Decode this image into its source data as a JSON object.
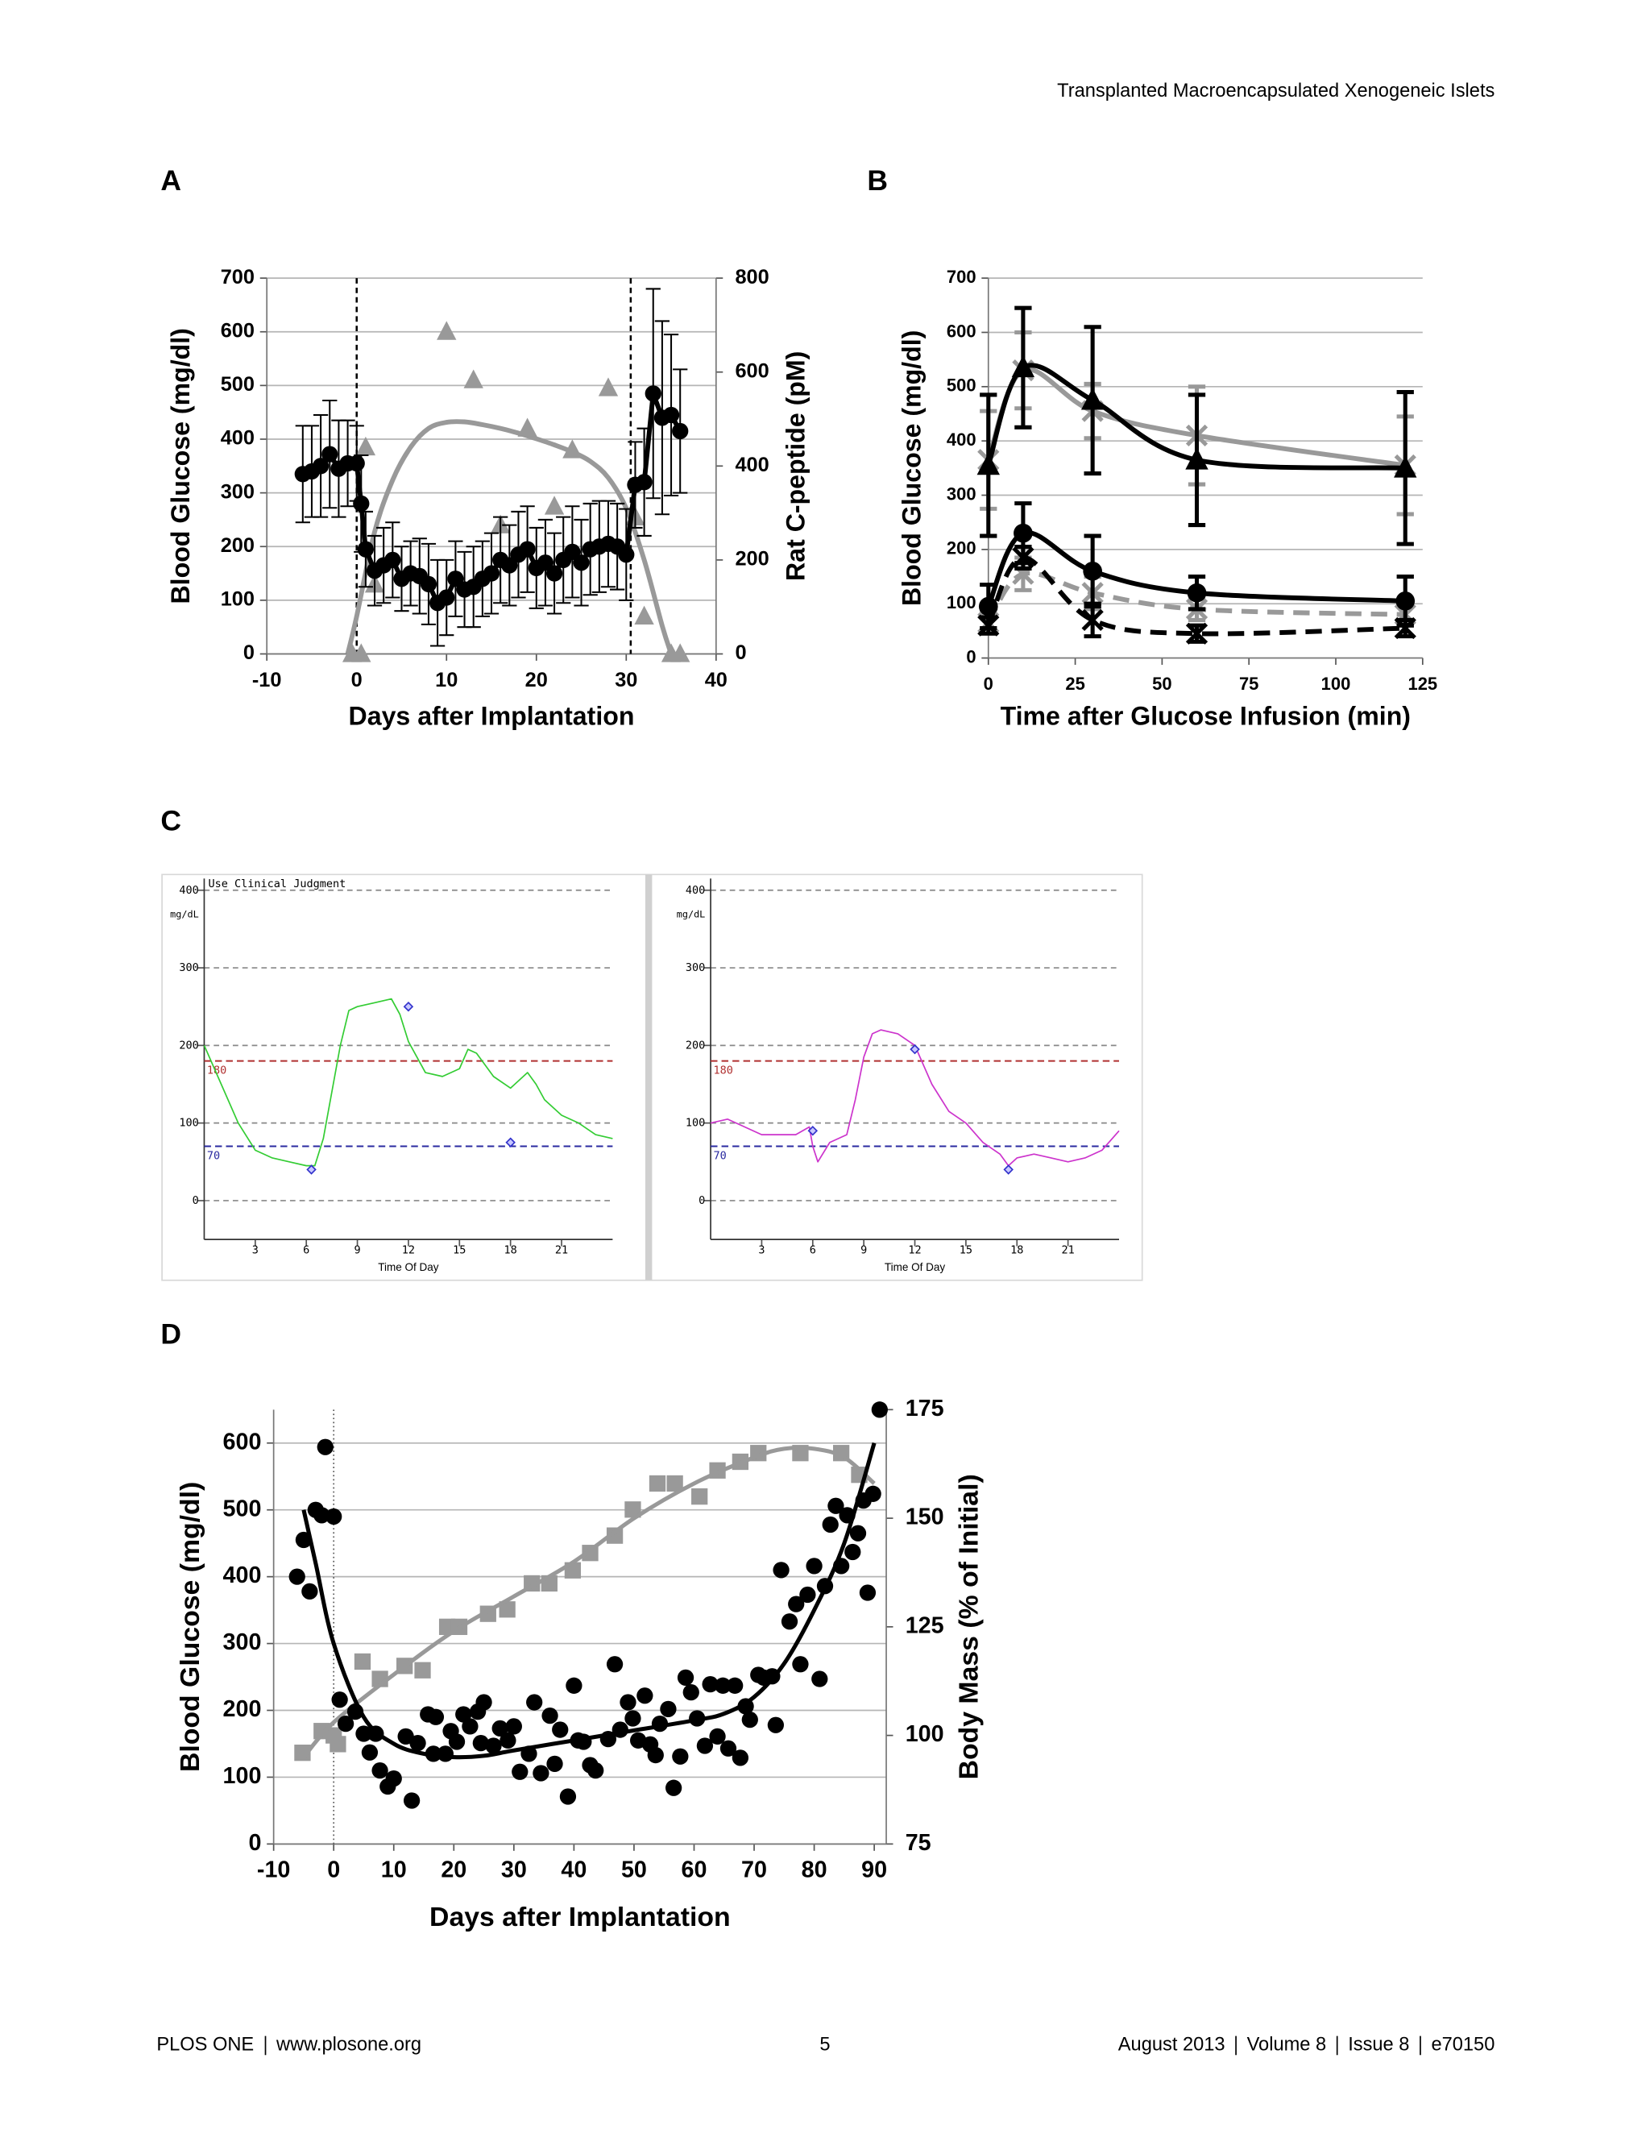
{
  "header": {
    "running_title": "Transplanted Macroencapsulated Xenogeneic Islets"
  },
  "panel_labels": [
    "A",
    "B",
    "C",
    "D"
  ],
  "footer": {
    "journal": "PLOS ONE",
    "url": "www.plosone.org",
    "page": "5",
    "date": "August 2013",
    "volume": "Volume 8",
    "issue": "Issue 8",
    "article": "e70150"
  },
  "chart_data": [
    {
      "type": "line",
      "xlabel": "Days after Implantation",
      "ylabel": "Blood Glucose (mg/dl)",
      "y2label": "Rat C-peptide (pM)",
      "xlim": [
        -10,
        40
      ],
      "xticks": [
        -10,
        0,
        10,
        20,
        30,
        40
      ],
      "ylim": [
        0,
        700
      ],
      "yticks": [
        0,
        100,
        200,
        300,
        400,
        500,
        600,
        700
      ],
      "y2lim": [
        0,
        800
      ],
      "y2ticks": [
        0,
        200,
        400,
        600,
        800
      ],
      "grid": true,
      "grid_style": "solid",
      "vlines": [
        0,
        30.5
      ],
      "series": [
        {
          "color": "#999999",
          "axis": "y2",
          "line": true,
          "smooth": true,
          "x": [
            -1,
            0,
            2,
            4,
            6,
            8,
            10,
            12,
            14,
            16,
            18,
            20,
            22,
            24,
            26,
            28,
            30,
            32,
            34,
            35
          ],
          "values": [
            0,
            80,
            260,
            370,
            440,
            480,
            493,
            494,
            488,
            480,
            470,
            458,
            445,
            430,
            410,
            375,
            310,
            200,
            60,
            0
          ]
        },
        {
          "color": "#999999",
          "axis": "y2",
          "marker": "triangle",
          "x": [
            -0.5,
            0.5,
            1,
            2,
            10,
            13,
            16,
            19,
            22,
            24,
            28,
            31,
            32,
            35,
            36
          ],
          "values": [
            0,
            0,
            440,
            148,
            686,
            583,
            274,
            480,
            314,
            434,
            566,
            291,
            80,
            0,
            0
          ]
        },
        {
          "color": "#000000",
          "line": true,
          "marker": "circle",
          "x": [
            -6,
            -5,
            -4,
            -3,
            -2,
            -1,
            0,
            0.5,
            1,
            2,
            3,
            4,
            5,
            6,
            7,
            8,
            9,
            10,
            11,
            12,
            13,
            14,
            15,
            16,
            17,
            18,
            19,
            20,
            21,
            22,
            23,
            24,
            25,
            26,
            27,
            28,
            29,
            30,
            31,
            32,
            33,
            34,
            35,
            36
          ],
          "values": [
            335,
            340,
            350,
            372,
            345,
            355,
            355,
            280,
            195,
            155,
            165,
            175,
            140,
            150,
            145,
            130,
            95,
            105,
            140,
            120,
            125,
            140,
            150,
            175,
            165,
            185,
            195,
            160,
            170,
            150,
            175,
            190,
            170,
            195,
            200,
            205,
            200,
            185,
            315,
            320,
            485,
            440,
            445,
            415
          ],
          "errors": [
            90,
            85,
            95,
            100,
            90,
            80,
            70,
            90,
            70,
            65,
            70,
            70,
            60,
            60,
            70,
            75,
            80,
            70,
            70,
            70,
            75,
            70,
            75,
            80,
            75,
            80,
            80,
            75,
            80,
            75,
            80,
            85,
            80,
            85,
            85,
            80,
            80,
            85,
            80,
            100,
            195,
            180,
            150,
            115
          ]
        }
      ]
    },
    {
      "type": "line",
      "xlabel": "Time after Glucose Infusion (min)",
      "ylabel": "Blood Glucose (mg/dl)",
      "xlim": [
        0,
        125
      ],
      "xticks": [
        0,
        25,
        50,
        75,
        100,
        125
      ],
      "ylim": [
        0,
        700
      ],
      "yticks": [
        0,
        100,
        200,
        300,
        400,
        500,
        600,
        700
      ],
      "grid": true,
      "grid_style": "solid",
      "series": [
        {
          "color": "#999999",
          "line": true,
          "smooth": true,
          "marker": "x",
          "line_style": "solid",
          "x": [
            0,
            10,
            30,
            60,
            120
          ],
          "values": [
            365,
            530,
            455,
            410,
            355
          ],
          "errors": [
            90,
            70,
            50,
            90,
            90
          ]
        },
        {
          "color": "#000000",
          "line": true,
          "smooth": true,
          "marker": "triangle",
          "line_style": "solid",
          "x": [
            0,
            10,
            30,
            60,
            120
          ],
          "values": [
            355,
            535,
            475,
            365,
            350
          ],
          "errors": [
            130,
            110,
            135,
            120,
            140
          ]
        },
        {
          "color": "#999999",
          "line": true,
          "smooth": true,
          "marker": "x",
          "line_style": "dashed",
          "x": [
            0,
            10,
            30,
            60,
            120
          ],
          "values": [
            65,
            155,
            120,
            90,
            80
          ],
          "errors": [
            20,
            30,
            30,
            20,
            20
          ]
        },
        {
          "color": "#000000",
          "line": true,
          "smooth": true,
          "marker": "x",
          "line_style": "dashed",
          "x": [
            0,
            10,
            30,
            60,
            120
          ],
          "values": [
            60,
            185,
            70,
            45,
            55
          ],
          "errors": [
            15,
            20,
            30,
            15,
            15
          ]
        },
        {
          "color": "#000000",
          "line": true,
          "smooth": true,
          "marker": "circle",
          "line_style": "solid",
          "x": [
            0,
            10,
            30,
            60,
            120
          ],
          "values": [
            95,
            230,
            160,
            120,
            105
          ],
          "errors": [
            40,
            55,
            65,
            30,
            45
          ]
        }
      ]
    },
    {
      "type": "line",
      "annotation": "Use Clinical Judgment",
      "y_unit": "mg/dL",
      "xlabel": "Time Of Day",
      "xlim": [
        0,
        24
      ],
      "xticks": [
        3,
        6,
        9,
        12,
        15,
        18,
        21
      ],
      "ylim": [
        -50,
        415
      ],
      "yticks": [
        0,
        100,
        200,
        300,
        400
      ],
      "grid": true,
      "grid_style": "dashed",
      "thresholds": [
        180,
        70
      ],
      "threshold_colors": [
        "#b03030",
        "#2a2aa0"
      ],
      "series": [
        {
          "color": "#33cc33",
          "line": true,
          "x": [
            0,
            1,
            2,
            3,
            4,
            5,
            6,
            6.5,
            7,
            8,
            8.5,
            9,
            10,
            11,
            11.5,
            12,
            13,
            14,
            15,
            15.5,
            16,
            17,
            18,
            19,
            19.5,
            20,
            21,
            22,
            23,
            24
          ],
          "values": [
            200,
            150,
            100,
            65,
            55,
            50,
            45,
            45,
            80,
            200,
            245,
            250,
            255,
            260,
            240,
            205,
            165,
            160,
            170,
            195,
            190,
            160,
            145,
            165,
            150,
            130,
            110,
            100,
            85,
            80
          ]
        },
        {
          "color": "#3333cc",
          "marker": "diamond",
          "x": [
            6.3,
            12,
            18
          ],
          "values": [
            40,
            250,
            75
          ]
        }
      ]
    },
    {
      "type": "line",
      "y_unit": "mg/dL",
      "xlabel": "Time Of Day",
      "xlim": [
        0,
        24
      ],
      "xticks": [
        3,
        6,
        9,
        12,
        15,
        18,
        21
      ],
      "ylim": [
        -50,
        415
      ],
      "yticks": [
        0,
        100,
        200,
        300,
        400
      ],
      "grid": true,
      "grid_style": "dashed",
      "thresholds": [
        180,
        70
      ],
      "threshold_colors": [
        "#b03030",
        "#2a2aa0"
      ],
      "series": [
        {
          "color": "#cc33cc",
          "line": true,
          "x": [
            0,
            1,
            2,
            3,
            4,
            5,
            5.8,
            6,
            6.3,
            7,
            8,
            8.5,
            9,
            9.5,
            10,
            11,
            12,
            12.5,
            13,
            14,
            15,
            16,
            17,
            17.5,
            18,
            19,
            20,
            21,
            22,
            23,
            24
          ],
          "values": [
            100,
            105,
            95,
            85,
            85,
            85,
            95,
            70,
            50,
            75,
            85,
            130,
            185,
            215,
            220,
            215,
            200,
            175,
            150,
            115,
            100,
            75,
            60,
            45,
            55,
            60,
            55,
            50,
            55,
            65,
            90
          ]
        },
        {
          "color": "#3333cc",
          "marker": "diamond",
          "x": [
            6,
            12,
            17.5
          ],
          "values": [
            90,
            195,
            40
          ]
        }
      ]
    },
    {
      "type": "scatter",
      "xlabel": "Days after Implantation",
      "ylabel": "Blood Glucose (mg/dl)",
      "y2label": "Body Mass (% of Initial)",
      "xlim": [
        -10,
        92
      ],
      "xticks": [
        -10,
        0,
        10,
        20,
        30,
        40,
        50,
        60,
        70,
        80,
        90
      ],
      "ylim": [
        0,
        650
      ],
      "yticks": [
        0,
        100,
        200,
        300,
        400,
        500,
        600
      ],
      "y2lim": [
        75,
        175
      ],
      "y2ticks": [
        75,
        100,
        125,
        150,
        175
      ],
      "grid": true,
      "grid_style": "solid",
      "vlines": [
        0
      ],
      "series": [
        {
          "color": "#999999",
          "axis": "y2",
          "marker": "square",
          "x": [
            -5.2,
            -2,
            0,
            0.7,
            4.8,
            7.7,
            11.8,
            14.8,
            18.9,
            20.9,
            25.7,
            28.9,
            33,
            35.9,
            39.8,
            42.7,
            46.8,
            49.8,
            53.9,
            56.8,
            60.9,
            63.9,
            67.7,
            70.7,
            77.7,
            84.5,
            87.5
          ],
          "values": [
            96,
            101,
            100,
            98,
            117,
            113,
            116,
            115,
            125,
            125,
            128,
            129,
            135,
            135,
            138,
            142,
            146,
            152,
            158,
            158,
            155,
            161,
            163,
            165,
            165,
            165,
            160
          ]
        },
        {
          "color": "#999999",
          "axis": "y2",
          "line": true,
          "smooth": true,
          "x": [
            -5,
            0,
            10,
            20,
            30,
            40,
            50,
            60,
            70,
            75,
            80,
            85,
            90
          ],
          "values": [
            95,
            103,
            114,
            124,
            132,
            140,
            150,
            158,
            164,
            166,
            166,
            164,
            158
          ]
        },
        {
          "color": "#000000",
          "marker": "circle",
          "x": [
            -6.1,
            -5,
            -4,
            -3,
            -2,
            -1.4,
            0,
            1,
            2,
            3.6,
            5,
            6,
            7,
            7.7,
            9,
            10,
            12,
            13,
            14,
            15.7,
            16.6,
            17,
            18.6,
            19.5,
            20.5,
            21.6,
            22.7,
            24,
            24.5,
            25,
            26.6,
            27.7,
            29,
            30,
            31,
            32.5,
            33.4,
            34.5,
            36,
            36.8,
            37.7,
            39,
            40,
            40.7,
            41.6,
            42.7,
            43.6,
            45.7,
            46.8,
            47.7,
            49,
            49.8,
            50.7,
            51.8,
            52.7,
            53.6,
            54.3,
            55.7,
            56.6,
            57.7,
            58.6,
            59.5,
            60.5,
            61.8,
            62.7,
            63.9,
            64.8,
            65.7,
            66.8,
            67.7,
            68.6,
            69.3,
            70.7,
            71.6,
            73,
            73.6,
            74.5,
            75.9,
            77,
            77.7,
            78.9,
            80,
            80.9,
            81.8,
            82.7,
            83.6,
            84.5,
            85.5,
            86.4,
            87.3,
            88.2,
            88.9,
            89.8,
            90.9
          ],
          "values": [
            400,
            455,
            378,
            500,
            492,
            594,
            490,
            216,
            180,
            198,
            165,
            137,
            165,
            110,
            86,
            98,
            161,
            65,
            151,
            194,
            135,
            190,
            135,
            169,
            153,
            194,
            176,
            198,
            151,
            212,
            147,
            173,
            155,
            176,
            108,
            135,
            212,
            106,
            192,
            120,
            171,
            71,
            237,
            155,
            153,
            118,
            110,
            157,
            269,
            171,
            212,
            188,
            155,
            222,
            149,
            133,
            180,
            202,
            84,
            131,
            249,
            227,
            188,
            147,
            239,
            161,
            237,
            143,
            237,
            129,
            206,
            186,
            253,
            249,
            251,
            178,
            410,
            333,
            359,
            269,
            373,
            416,
            247,
            386,
            478,
            506,
            416,
            492,
            437,
            465,
            514,
            376,
            524,
            650
          ]
        },
        {
          "color": "#000000",
          "line": true,
          "smooth": true,
          "x": [
            -5,
            -3,
            0,
            5,
            10,
            15,
            20,
            25,
            30,
            40,
            50,
            60,
            65,
            70,
            75,
            80,
            85,
            90
          ],
          "values": [
            500,
            420,
            300,
            190,
            150,
            135,
            130,
            132,
            140,
            155,
            170,
            185,
            195,
            220,
            270,
            350,
            450,
            600
          ]
        }
      ]
    }
  ]
}
